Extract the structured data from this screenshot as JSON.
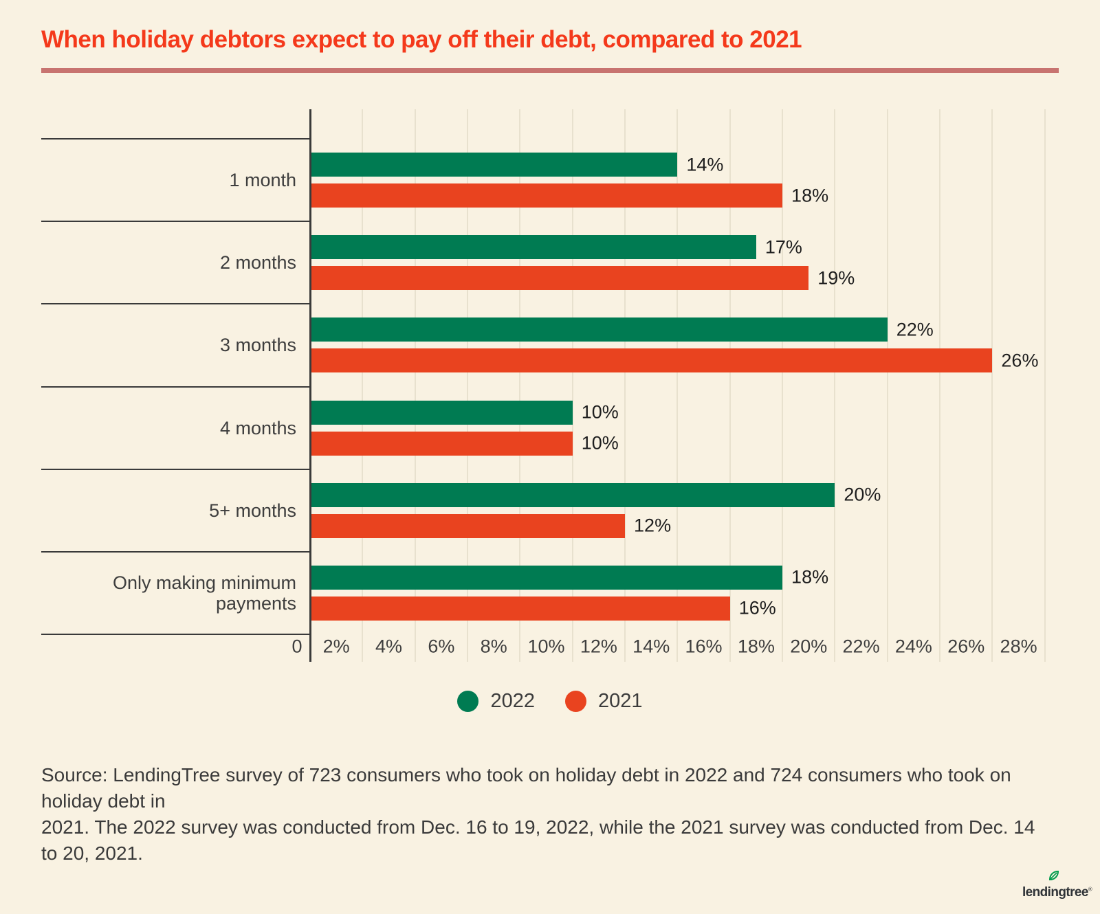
{
  "header": {
    "title": "When holiday debtors expect to pay off their debt, compared to 2021"
  },
  "colors": {
    "background": "#F9F2E2",
    "title": "#F4391B",
    "title_rule": "#C87470",
    "axis": "#3A3A3A",
    "gridline": "#E8E1CE",
    "green_2022": "#007B52",
    "orange_2021": "#E9431F",
    "text": "#3E3E3E"
  },
  "chart_data": {
    "type": "bar",
    "orientation": "horizontal",
    "title": "When holiday debtors expect to pay off their debt, compared to 2021",
    "categories": [
      "1 month",
      "2 months",
      "3 months",
      "4 months",
      "5+ months",
      "Only making minimum payments"
    ],
    "series": [
      {
        "name": "2022",
        "color": "#007B52",
        "values": [
          14,
          17,
          22,
          10,
          20,
          18
        ]
      },
      {
        "name": "2021",
        "color": "#E9431F",
        "values": [
          18,
          19,
          26,
          10,
          12,
          16
        ]
      }
    ],
    "value_suffix": "%",
    "xlim": [
      0,
      28
    ],
    "x_ticks": [
      "0",
      "2%",
      "4%",
      "6%",
      "8%",
      "10%",
      "12%",
      "14%",
      "16%",
      "18%",
      "20%",
      "22%",
      "24%",
      "26%",
      "28%"
    ],
    "grid": "vertical",
    "legend_position": "bottom-center",
    "data_labels": true
  },
  "legend": {
    "items": [
      {
        "label": "2022",
        "color": "#007B52"
      },
      {
        "label": "2021",
        "color": "#E9431F"
      }
    ]
  },
  "source": {
    "lines": [
      "Source: LendingTree survey of 723 consumers who took on holiday debt in 2022 and 724 consumers who took on holiday debt in",
      "2021. The 2022 survey was conducted from Dec. 16 to 19, 2022, while the 2021 survey was conducted from Dec. 14 to 20, 2021."
    ]
  },
  "logo": {
    "text": "lendingtree",
    "registered_mark": "®"
  }
}
